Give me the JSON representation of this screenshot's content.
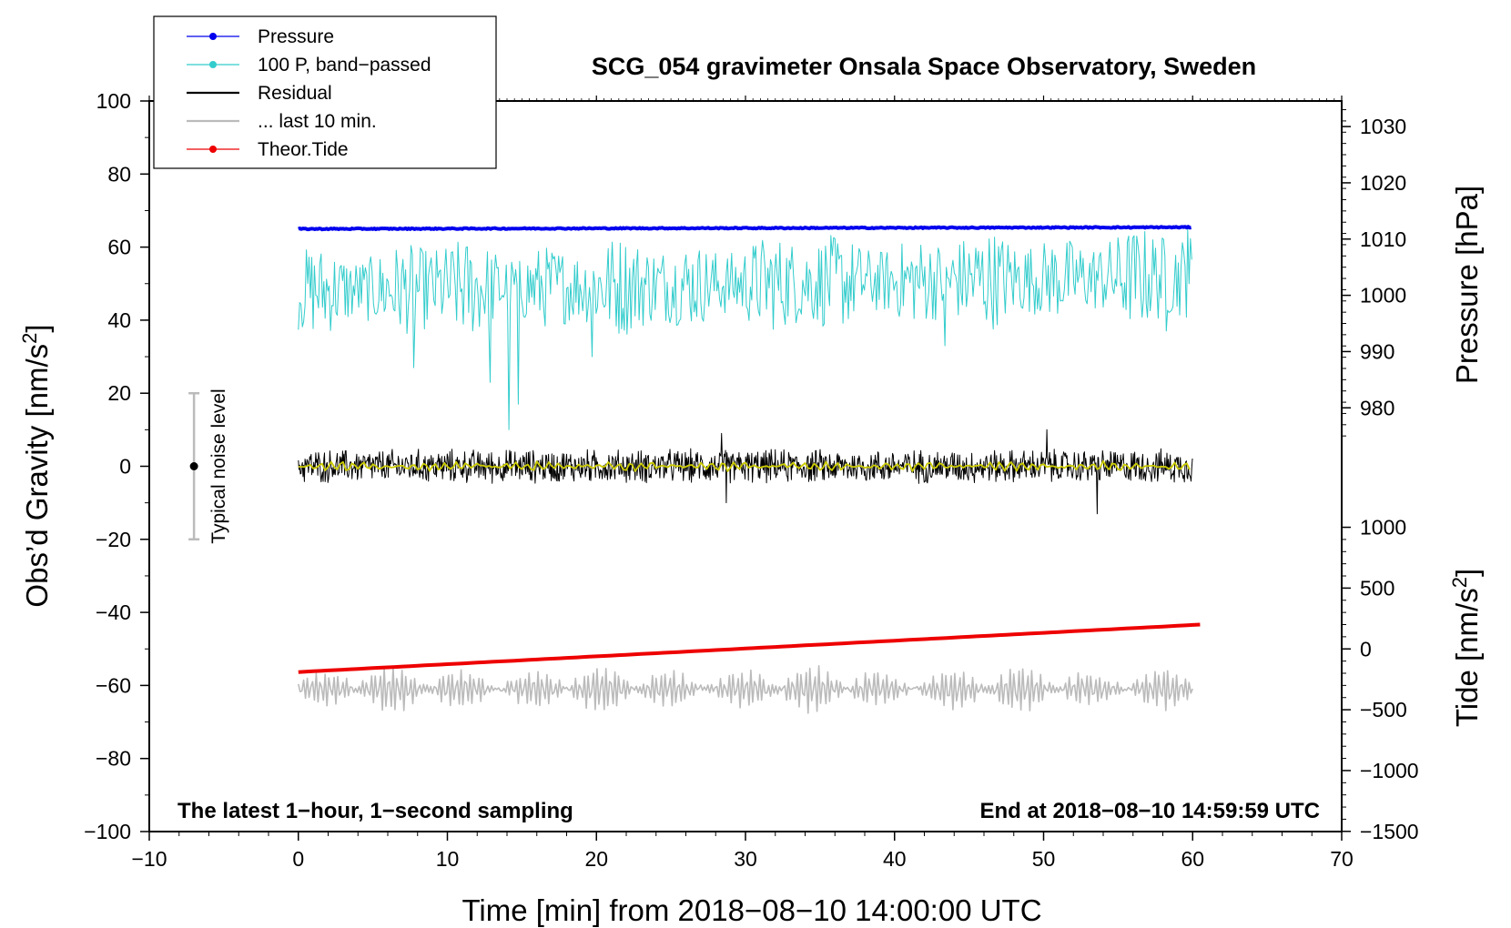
{
  "chart_data": {
    "type": "line",
    "title": "SCG_054 gravimeter Onsala Space Observatory, Sweden",
    "xlabel": "Time [min] from 2018−08−10 14:00:00 UTC",
    "ylabel_left": "Obs’d Gravity [nm/s²]",
    "ylabel_right_top": "Pressure [hPa]",
    "ylabel_right_bottom": "Tide [nm/s²]",
    "xlim": [
      -10,
      70
    ],
    "ylim_left": [
      -100,
      100
    ],
    "x_ticks": [
      -10,
      0,
      10,
      20,
      30,
      40,
      50,
      60,
      70
    ],
    "x_tick_labels": [
      "−10",
      "0",
      "10",
      "20",
      "30",
      "40",
      "50",
      "60",
      "70"
    ],
    "y_left_ticks": [
      100,
      80,
      60,
      40,
      20,
      0,
      -20,
      -40,
      -60,
      -80,
      -100
    ],
    "y_left_tick_labels": [
      "100",
      "80",
      "60",
      "40",
      "20",
      "0",
      "−20",
      "−40",
      "−60",
      "−80",
      "−100"
    ],
    "pressure_axis": {
      "ticks": [
        1030,
        1020,
        1010,
        1000,
        990,
        980
      ],
      "tick_labels": [
        "1030",
        "1020",
        "1010",
        "1000",
        "990",
        "980"
      ],
      "left_at_1030": 93,
      "left_per_hpa": 1.54
    },
    "tide_axis": {
      "ticks": [
        1000,
        500,
        0,
        -500,
        -1000,
        -1500
      ],
      "tick_labels": [
        "1000",
        "500",
        "0",
        "−500",
        "−1000",
        "−1500"
      ],
      "left_at_0": -50,
      "left_per_unit": 0.0333
    },
    "legend": {
      "position": "top-left",
      "entries": [
        {
          "label": "Pressure",
          "color": "#0000ee",
          "marker": true
        },
        {
          "label": "100 P, band−passed",
          "color": "#33cccc",
          "marker": true
        },
        {
          "label": "Residual",
          "color": "#000000",
          "marker": false
        },
        {
          "label": "... last 10 min.",
          "color": "#bbbbbb",
          "marker": false
        },
        {
          "label": "Theor.Tide",
          "color": "#ee0000",
          "marker": true
        }
      ]
    },
    "noise_bar": {
      "label": "Typical noise level",
      "x": -7,
      "center": 0,
      "low": -20,
      "high": 20
    },
    "annotation_left": "The latest 1−hour, 1−second sampling",
    "annotation_right": "End at 2018−08−10 14:59:59 UTC",
    "series": [
      {
        "name": "Pressure",
        "color": "#0000ee",
        "x_range": [
          0,
          60
        ],
        "values_hpa": [
          1011.8,
          1012.1
        ],
        "noise_hpa": 0.2
      },
      {
        "name": "100 P, band−passed",
        "color": "#33cccc",
        "x_range": [
          0,
          60
        ],
        "mean": 48,
        "amplitude": 7,
        "spikes": [
          {
            "x": 7.7,
            "y": 27
          },
          {
            "x": 12.9,
            "y": 23
          },
          {
            "x": 14.1,
            "y": 10
          },
          {
            "x": 14.8,
            "y": 17
          },
          {
            "x": 19.7,
            "y": 30
          },
          {
            "x": 43.4,
            "y": 33
          },
          {
            "x": 58.2,
            "y": 37
          },
          {
            "x": 59.7,
            "y": 65
          }
        ]
      },
      {
        "name": "Residual",
        "color": "#000000",
        "x_range": [
          0,
          60
        ],
        "mean": 0,
        "amplitude": 4,
        "spikes": [
          {
            "x": 28.4,
            "y": 9
          },
          {
            "x": 28.7,
            "y": -10
          },
          {
            "x": 50.2,
            "y": 10
          },
          {
            "x": 53.6,
            "y": -13
          }
        ]
      },
      {
        "name": "Residual smoothed",
        "color": "#cccc00",
        "x_range": [
          0,
          60
        ],
        "mean": 0,
        "amplitude": 1
      },
      {
        "name": "... last 10 min.",
        "color": "#bbbbbb",
        "x_range": [
          0,
          60
        ],
        "mean": -61,
        "amplitude": 4,
        "min": -74,
        "max": -53
      },
      {
        "name": "Theor.Tide",
        "color": "#ee0000",
        "x_range": [
          0,
          60.5
        ],
        "values_tide": [
          -190,
          200
        ]
      }
    ]
  }
}
